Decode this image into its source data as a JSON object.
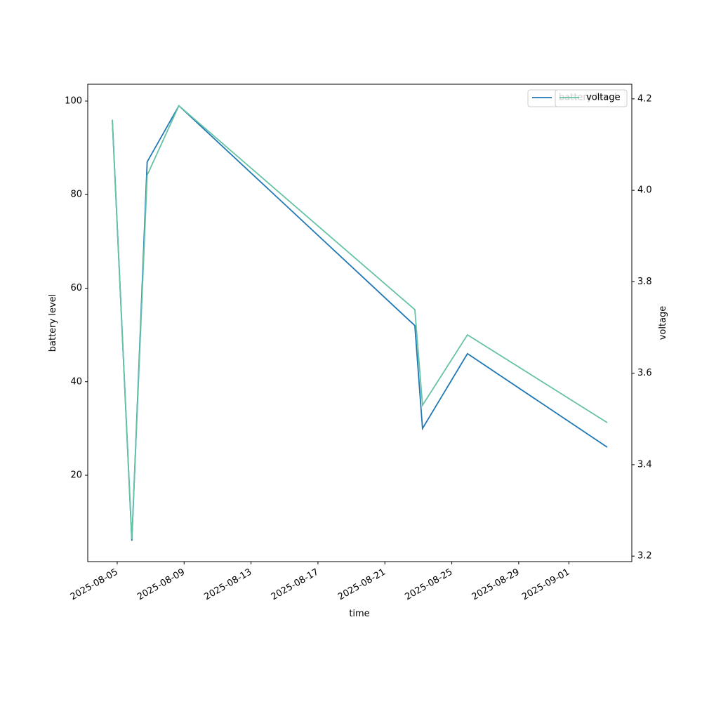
{
  "chart_data": {
    "type": "line",
    "x_label": "time",
    "y_label": "battery level",
    "y2_label": "voltage",
    "x": [
      "2025-08-04T17:00",
      "2025-08-05T21:00",
      "2025-08-06T19:00",
      "2025-08-08T16:30",
      "2025-08-22T19:00",
      "2025-08-23T06:00",
      "2025-08-25T22:30",
      "2025-09-03T07:00"
    ],
    "series": [
      {
        "name": "battery level",
        "color": "#1f77b4",
        "values": [
          96,
          6,
          87,
          99,
          52,
          30,
          46,
          26
        ]
      },
      {
        "name": "voltage",
        "color": "#66c2a5",
        "axis": "y2",
        "values": [
          4.154,
          3.237,
          4.033,
          4.185,
          3.739,
          3.53,
          3.684,
          3.492
        ]
      }
    ],
    "xlim": [
      "2025-08-03T05:45",
      "2025-09-04T18:15"
    ],
    "xticks": [
      "2025-08-05",
      "2025-08-09",
      "2025-08-13",
      "2025-08-17",
      "2025-08-21",
      "2025-08-25",
      "2025-08-29",
      "2025-09-01"
    ],
    "ylim": [
      1.54,
      103.6
    ],
    "yticks": [
      20,
      40,
      60,
      80,
      100
    ],
    "y2lim": [
      3.188,
      4.232
    ],
    "y2ticks": [
      {
        "value": 3.2,
        "label": "3.2"
      },
      {
        "value": 3.4,
        "label": "3.4"
      },
      {
        "value": 3.6,
        "label": "3.6"
      },
      {
        "value": 3.8,
        "label": "3.8"
      },
      {
        "value": 4.0,
        "label": "4.0"
      },
      {
        "value": 4.2,
        "label": "4.2"
      }
    ],
    "legend": "upper right",
    "grid": false
  }
}
